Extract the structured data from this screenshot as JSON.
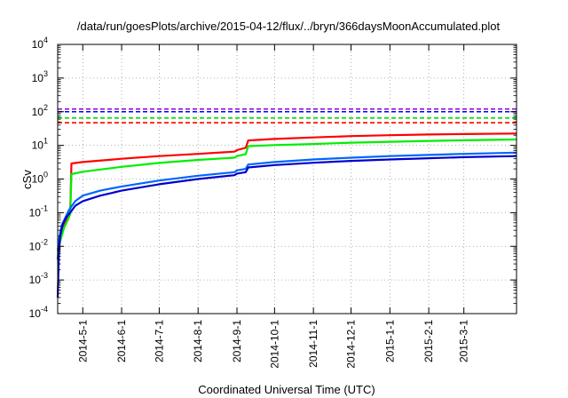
{
  "chart_data": {
    "type": "line",
    "title": "/data/run/goesPlots/archive/2015-04-12/flux/../bryn/366daysMoonAccumulated.plot",
    "xlabel": "Coordinated Universal Time (UTC)",
    "ylabel": "cSv",
    "y_scale": "log",
    "ylim": [
      0.0001,
      10000
    ],
    "xlim": [
      "2014-04-11",
      "2015-04-12"
    ],
    "grid": true,
    "y_ticks": [
      {
        "value": 0.0001,
        "base": "10",
        "exp": "-4"
      },
      {
        "value": 0.001,
        "base": "10",
        "exp": "-3"
      },
      {
        "value": 0.01,
        "base": "10",
        "exp": "-2"
      },
      {
        "value": 0.1,
        "base": "10",
        "exp": "-1"
      },
      {
        "value": 1,
        "base": "10",
        "exp": "0"
      },
      {
        "value": 10,
        "base": "10",
        "exp": "1"
      },
      {
        "value": 100,
        "base": "10",
        "exp": "2"
      },
      {
        "value": 1000,
        "base": "10",
        "exp": "3"
      },
      {
        "value": 10000,
        "base": "10",
        "exp": "4"
      }
    ],
    "x_ticks": [
      {
        "date": "2014-05-01",
        "label": "2014-5-1"
      },
      {
        "date": "2014-06-01",
        "label": "2014-6-1"
      },
      {
        "date": "2014-07-01",
        "label": "2014-7-1"
      },
      {
        "date": "2014-08-01",
        "label": "2014-8-1"
      },
      {
        "date": "2014-09-01",
        "label": "2014-9-1"
      },
      {
        "date": "2014-10-01",
        "label": "2014-10-1"
      },
      {
        "date": "2014-11-01",
        "label": "2014-11-1"
      },
      {
        "date": "2014-12-01",
        "label": "2014-12-1"
      },
      {
        "date": "2015-01-01",
        "label": "2015-1-1"
      },
      {
        "date": "2015-02-01",
        "label": "2015-2-1"
      },
      {
        "date": "2015-03-01",
        "label": "2015-3-1"
      }
    ],
    "series": [
      {
        "color": "#ff0000",
        "points": [
          [
            "2014-04-11",
            0.008
          ],
          [
            "2014-04-13",
            0.015
          ],
          [
            "2014-04-16",
            0.04
          ],
          [
            "2014-04-19",
            0.07
          ],
          [
            "2014-04-21",
            0.1
          ],
          [
            "2014-04-22",
            2.9
          ],
          [
            "2014-05-01",
            3.2
          ],
          [
            "2014-06-01",
            4.0
          ],
          [
            "2014-07-01",
            4.8
          ],
          [
            "2014-08-01",
            5.6
          ],
          [
            "2014-08-30",
            6.5
          ],
          [
            "2014-09-01",
            7.2
          ],
          [
            "2014-09-08",
            8.5
          ],
          [
            "2014-09-10",
            14.0
          ],
          [
            "2014-10-01",
            15.5
          ],
          [
            "2014-11-01",
            17.2
          ],
          [
            "2014-12-01",
            18.8
          ],
          [
            "2015-01-01",
            20.0
          ],
          [
            "2015-02-01",
            21.0
          ],
          [
            "2015-03-01",
            21.7
          ],
          [
            "2015-04-12",
            22.5
          ]
        ]
      },
      {
        "color": "#00ee00",
        "points": [
          [
            "2014-04-11",
            0.007
          ],
          [
            "2014-04-13",
            0.014
          ],
          [
            "2014-04-16",
            0.035
          ],
          [
            "2014-04-19",
            0.06
          ],
          [
            "2014-04-21",
            0.09
          ],
          [
            "2014-04-22",
            1.4
          ],
          [
            "2014-05-01",
            1.65
          ],
          [
            "2014-06-01",
            2.3
          ],
          [
            "2014-07-01",
            3.0
          ],
          [
            "2014-08-01",
            3.7
          ],
          [
            "2014-08-30",
            4.3
          ],
          [
            "2014-09-01",
            4.8
          ],
          [
            "2014-09-08",
            5.5
          ],
          [
            "2014-09-10",
            9.5
          ],
          [
            "2014-10-01",
            10.2
          ],
          [
            "2014-11-01",
            11.0
          ],
          [
            "2014-12-01",
            12.0
          ],
          [
            "2015-01-01",
            12.8
          ],
          [
            "2015-02-01",
            13.6
          ],
          [
            "2015-03-01",
            14.2
          ],
          [
            "2015-04-12",
            15.0
          ]
        ]
      },
      {
        "color": "#0066ff",
        "points": [
          [
            "2014-04-11",
            0.004
          ],
          [
            "2014-04-12",
            0.015
          ],
          [
            "2014-04-14",
            0.04
          ],
          [
            "2014-04-17",
            0.07
          ],
          [
            "2014-04-20",
            0.12
          ],
          [
            "2014-04-25",
            0.22
          ],
          [
            "2014-05-01",
            0.32
          ],
          [
            "2014-05-15",
            0.45
          ],
          [
            "2014-06-01",
            0.6
          ],
          [
            "2014-07-01",
            0.9
          ],
          [
            "2014-08-01",
            1.25
          ],
          [
            "2014-08-30",
            1.6
          ],
          [
            "2014-09-01",
            1.8
          ],
          [
            "2014-09-08",
            2.0
          ],
          [
            "2014-09-10",
            2.7
          ],
          [
            "2014-10-01",
            3.2
          ],
          [
            "2014-11-01",
            3.8
          ],
          [
            "2014-12-01",
            4.3
          ],
          [
            "2015-01-01",
            4.8
          ],
          [
            "2015-02-01",
            5.2
          ],
          [
            "2015-03-01",
            5.6
          ],
          [
            "2015-04-12",
            6.1
          ]
        ]
      },
      {
        "color": "#0000cc",
        "points": [
          [
            "2014-04-11",
            0.0003
          ],
          [
            "2014-04-12",
            0.006
          ],
          [
            "2014-04-13",
            0.02
          ],
          [
            "2014-04-15",
            0.045
          ],
          [
            "2014-04-18",
            0.075
          ],
          [
            "2014-04-21",
            0.1
          ],
          [
            "2014-04-25",
            0.16
          ],
          [
            "2014-05-01",
            0.22
          ],
          [
            "2014-05-15",
            0.32
          ],
          [
            "2014-06-01",
            0.45
          ],
          [
            "2014-07-01",
            0.7
          ],
          [
            "2014-08-01",
            1.0
          ],
          [
            "2014-08-30",
            1.3
          ],
          [
            "2014-09-01",
            1.45
          ],
          [
            "2014-09-08",
            1.6
          ],
          [
            "2014-09-10",
            2.2
          ],
          [
            "2014-10-01",
            2.6
          ],
          [
            "2014-11-01",
            3.05
          ],
          [
            "2014-12-01",
            3.45
          ],
          [
            "2015-01-01",
            3.8
          ],
          [
            "2015-02-01",
            4.15
          ],
          [
            "2015-03-01",
            4.45
          ],
          [
            "2015-04-12",
            4.8
          ]
        ]
      }
    ],
    "reference_lines": [
      {
        "value": 120,
        "color": "#9400d3"
      },
      {
        "value": 100,
        "color": "#0000ff"
      },
      {
        "value": 65,
        "color": "#00dd00"
      },
      {
        "value": 47,
        "color": "#ff0000"
      }
    ]
  }
}
